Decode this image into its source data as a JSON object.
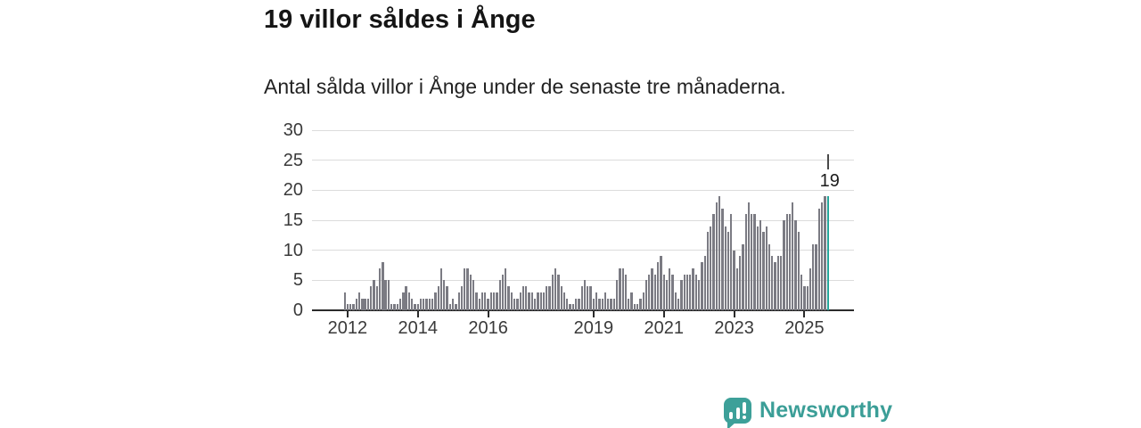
{
  "header": {
    "title": "19 villor såldes i Ånge",
    "subtitle": "Antal sålda villor i Ånge under de senaste tre månaderna."
  },
  "chart_data": {
    "type": "bar",
    "title": "19 villor såldes i Ånge",
    "subtitle": "Antal sålda villor i Ånge under de senaste tre månaderna.",
    "ylabel": "",
    "xlabel": "",
    "ylim": [
      0,
      30
    ],
    "y_ticks": [
      0,
      5,
      10,
      15,
      20,
      25,
      30
    ],
    "grid": "horizontal",
    "period_start": "2011-12",
    "period_end": "2025-09",
    "values": [
      3,
      1,
      1,
      1,
      2,
      3,
      2,
      2,
      2,
      4,
      5,
      4,
      7,
      8,
      5,
      5,
      1,
      1,
      1,
      2,
      3,
      4,
      3,
      2,
      1,
      1,
      2,
      2,
      2,
      2,
      2,
      3,
      4,
      7,
      5,
      4,
      1,
      2,
      1,
      3,
      4,
      7,
      7,
      6,
      5,
      3,
      2,
      3,
      3,
      2,
      3,
      3,
      3,
      5,
      6,
      7,
      4,
      3,
      2,
      2,
      3,
      4,
      4,
      3,
      3,
      2,
      3,
      3,
      3,
      4,
      4,
      6,
      7,
      6,
      4,
      3,
      2,
      1,
      1,
      2,
      2,
      4,
      5,
      4,
      4,
      2,
      3,
      2,
      2,
      3,
      2,
      2,
      2,
      5,
      7,
      7,
      6,
      2,
      3,
      1,
      1,
      2,
      3,
      5,
      6,
      7,
      6,
      8,
      9,
      6,
      5,
      7,
      6,
      3,
      2,
      5,
      6,
      6,
      6,
      7,
      6,
      5,
      8,
      9,
      13,
      14,
      16,
      18,
      19,
      17,
      14,
      13,
      16,
      10,
      7,
      9,
      11,
      16,
      18,
      16,
      16,
      14,
      15,
      13,
      14,
      11,
      9,
      8,
      9,
      9,
      15,
      16,
      16,
      18,
      15,
      13,
      6,
      4,
      4,
      7,
      11,
      11,
      17,
      18,
      19,
      19
    ],
    "x_ticks": [
      {
        "label": "2012",
        "index": 1
      },
      {
        "label": "2014",
        "index": 25
      },
      {
        "label": "2016",
        "index": 49
      },
      {
        "label": "2019",
        "index": 85
      },
      {
        "label": "2021",
        "index": 109
      },
      {
        "label": "2023",
        "index": 133
      },
      {
        "label": "2025",
        "index": 157
      }
    ],
    "highlight_last": true,
    "annotation": {
      "label": "19",
      "value": 19
    },
    "colors": {
      "bar": "#7b7b83",
      "highlight": "#25a69b",
      "grid": "#dcdcdc",
      "axis": "#2b2b2b",
      "brand": "#3b9e97"
    }
  },
  "footer": {
    "brand": "Newsworthy"
  }
}
